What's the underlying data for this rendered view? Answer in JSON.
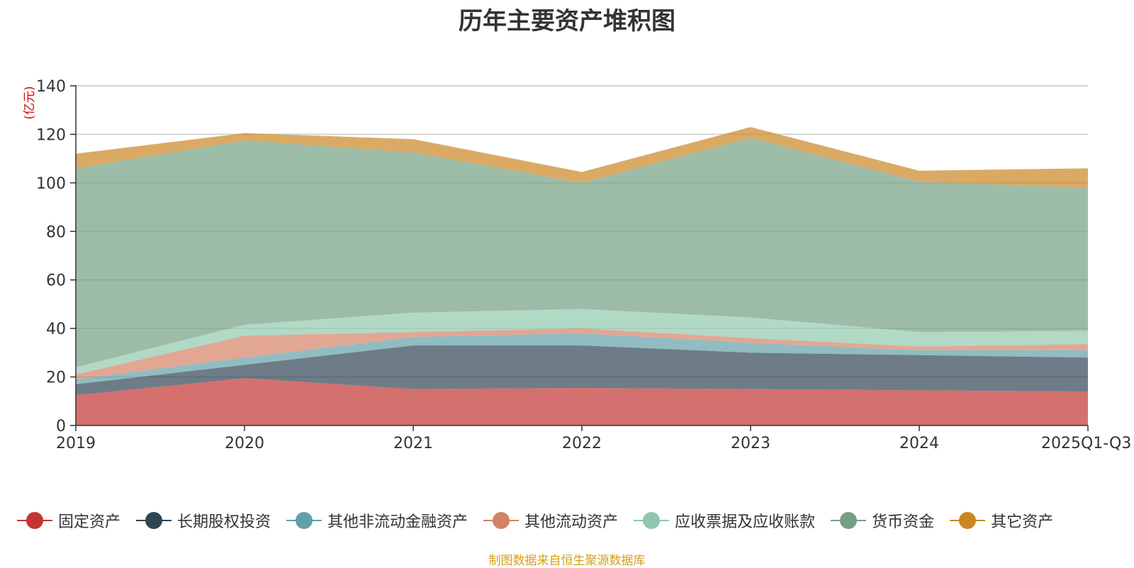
{
  "chart_data": {
    "type": "area",
    "stacked": true,
    "title": "历年主要资产堆积图",
    "ylabel": "(亿元)",
    "xlabel": "",
    "ylim": [
      0,
      140
    ],
    "yticks": [
      0,
      20,
      40,
      60,
      80,
      100,
      120,
      140
    ],
    "categories": [
      "2019",
      "2020",
      "2021",
      "2022",
      "2023",
      "2024",
      "2025Q1-Q3"
    ],
    "grid": true,
    "legend_position": "bottom",
    "series": [
      {
        "name": "固定资产",
        "color": "#c23531",
        "values": [
          12.5,
          19.5,
          15,
          15.5,
          15,
          14.5,
          14
        ]
      },
      {
        "name": "长期股权投资",
        "color": "#2f4554",
        "values": [
          4.5,
          5.5,
          18,
          17.5,
          15,
          14.5,
          14
        ]
      },
      {
        "name": "其他非流动金融资产",
        "color": "#61a0a8",
        "values": [
          2,
          3,
          3.5,
          5,
          4,
          2,
          3
        ]
      },
      {
        "name": "其他流动资产",
        "color": "#d48265",
        "values": [
          2,
          9,
          2,
          2,
          2,
          1.5,
          2.5
        ]
      },
      {
        "name": "应收票据及应收账款",
        "color": "#91c7ae",
        "values": [
          3,
          4.5,
          8,
          8,
          8.5,
          6,
          5.5
        ]
      },
      {
        "name": "货币资金",
        "color": "#749f83",
        "values": [
          82,
          76,
          66,
          52,
          74,
          62,
          59
        ]
      },
      {
        "name": "其它资产",
        "color": "#ca8622",
        "values": [
          6,
          3,
          5.5,
          4.5,
          4.5,
          4.5,
          8
        ]
      }
    ]
  },
  "source_note": "制图数据来自恒生聚源数据库"
}
